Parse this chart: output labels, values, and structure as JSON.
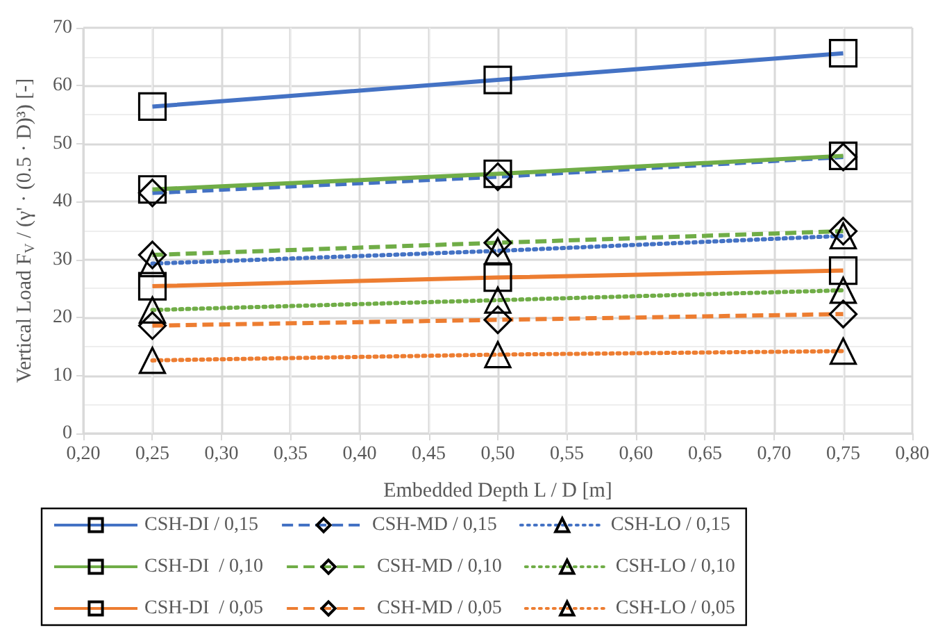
{
  "chart_data": {
    "type": "line",
    "xlabel": "Embedded Depth L / D [m]",
    "ylabel": "Vertical Load F$_{V}$ / (γ' · (0.5 · D)³) [-]",
    "x": [
      0.25,
      0.5,
      0.75
    ],
    "xlim": [
      0.2,
      0.8
    ],
    "xticks": [
      {
        "value": 0.2,
        "label": "0,20"
      },
      {
        "value": 0.25,
        "label": "0,25"
      },
      {
        "value": 0.3,
        "label": "0,30"
      },
      {
        "value": 0.35,
        "label": "0,35"
      },
      {
        "value": 0.4,
        "label": "0,40"
      },
      {
        "value": 0.45,
        "label": "0,45"
      },
      {
        "value": 0.5,
        "label": "0,50"
      },
      {
        "value": 0.55,
        "label": "0,55"
      },
      {
        "value": 0.6,
        "label": "0,60"
      },
      {
        "value": 0.65,
        "label": "0,65"
      },
      {
        "value": 0.7,
        "label": "0,70"
      },
      {
        "value": 0.75,
        "label": "0,75"
      },
      {
        "value": 0.8,
        "label": "0,80"
      }
    ],
    "ylim": [
      0,
      70
    ],
    "yticks": [
      0,
      10,
      20,
      30,
      40,
      50,
      60,
      70
    ],
    "grid": true,
    "legend": "bottom",
    "series": [
      {
        "name": "CSH-DI / 0,15",
        "color": "#4472c4",
        "marker": "square",
        "line_style": "solid",
        "values": [
          56.4,
          61.0,
          65.6
        ]
      },
      {
        "name": "CSH-MD / 0,15",
        "color": "#4472c4",
        "marker": "diamond",
        "line_style": "dashed",
        "values": [
          41.5,
          44.3,
          47.7
        ]
      },
      {
        "name": "CSH-LO / 0,15",
        "color": "#4472c4",
        "marker": "triangle",
        "line_style": "dotted",
        "values": [
          29.3,
          31.5,
          34.1
        ]
      },
      {
        "name": "CSH-DI  / 0,10",
        "color": "#70ad47",
        "marker": "square",
        "line_style": "solid",
        "values": [
          42.1,
          44.8,
          47.9
        ]
      },
      {
        "name": "CSH-MD / 0,10",
        "color": "#70ad47",
        "marker": "diamond",
        "line_style": "dashed",
        "values": [
          30.8,
          32.9,
          34.9
        ]
      },
      {
        "name": "CSH-LO / 0,10",
        "color": "#70ad47",
        "marker": "triangle",
        "line_style": "dotted",
        "values": [
          21.3,
          23.0,
          24.7
        ]
      },
      {
        "name": "CSH-DI  / 0,05",
        "color": "#ed7d31",
        "marker": "square",
        "line_style": "solid",
        "values": [
          25.4,
          26.9,
          28.1
        ]
      },
      {
        "name": "CSH-MD / 0,05",
        "color": "#ed7d31",
        "marker": "diamond",
        "line_style": "dashed",
        "values": [
          18.6,
          19.6,
          20.6
        ]
      },
      {
        "name": "CSH-LO / 0,05",
        "color": "#ed7d31",
        "marker": "triangle",
        "line_style": "dotted",
        "values": [
          12.6,
          13.6,
          14.2
        ]
      }
    ]
  }
}
